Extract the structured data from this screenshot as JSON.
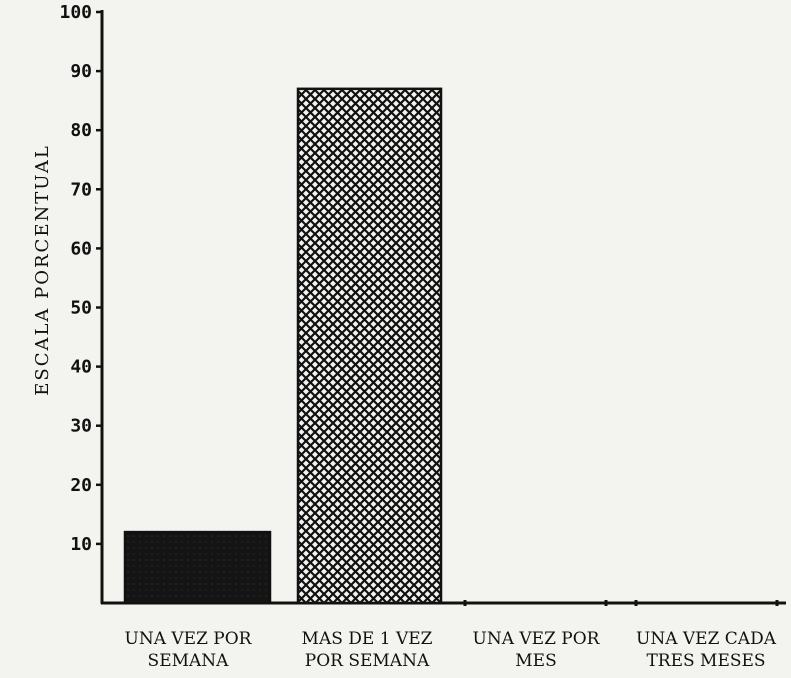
{
  "chart_data": {
    "type": "bar",
    "ylabel": "ESCALA PORCENTUAL",
    "xlabel": "",
    "ylim": [
      0,
      100
    ],
    "yticks": [
      10,
      20,
      30,
      40,
      50,
      60,
      70,
      80,
      90,
      100
    ],
    "grid": false,
    "categories": [
      [
        "UNA VEZ POR",
        "SEMANA"
      ],
      [
        "MAS DE 1 VEZ",
        "POR SEMANA"
      ],
      [
        "UNA VEZ POR",
        "MES"
      ],
      [
        "UNA VEZ CADA",
        "TRES MESES"
      ]
    ],
    "values": [
      12,
      87,
      0,
      0
    ],
    "bar_fills": [
      "solid-dark",
      "crosshatch",
      "none",
      "none"
    ],
    "colors": {
      "ink": "#111111",
      "paper": "#f3f3ef"
    }
  }
}
